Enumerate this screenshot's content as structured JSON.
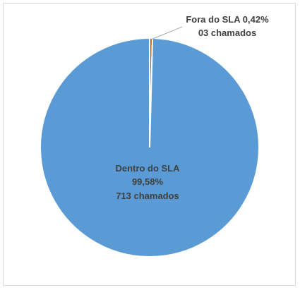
{
  "chart_data": {
    "type": "pie",
    "title": "",
    "slices": [
      {
        "label": "Fora do SLA",
        "percent_text": "0,42%",
        "count_text": "03 chamados",
        "value": 3,
        "percent": 0.42,
        "color": "#c55a11"
      },
      {
        "label": "Dentro do SLA",
        "percent_text": "99,58%",
        "count_text": "713 chamados",
        "value": 713,
        "percent": 99.58,
        "color": "#5b9bd5"
      }
    ],
    "label_color_outside": "#404040",
    "label_color_inside": "#404040",
    "slice_border_color": "#ffffff",
    "legend": "none"
  }
}
